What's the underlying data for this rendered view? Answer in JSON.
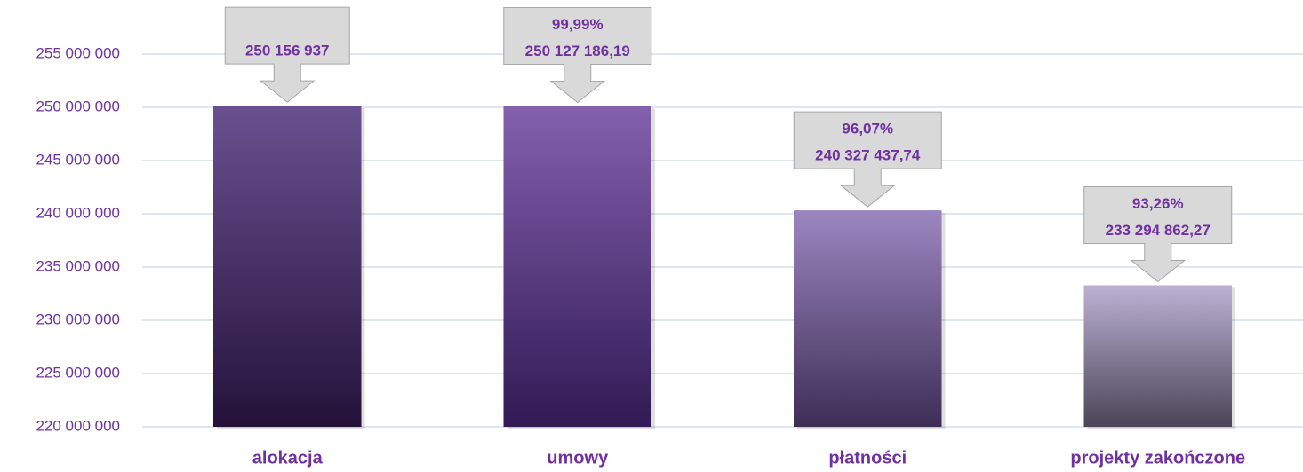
{
  "chart_data": {
    "type": "bar",
    "categories": [
      "alokacja",
      "umowy",
      "płatności",
      "projekty zakończone"
    ],
    "values": [
      250156937,
      250127186.19,
      240327437.74,
      233294862.27
    ],
    "value_labels": [
      "250 156 937",
      "250 127 186,19",
      "240 327 437,74",
      "233 294 862,27"
    ],
    "shares": [
      null,
      99.99,
      96.07,
      93.26
    ],
    "share_labels": [
      null,
      "99,99%",
      "96,07%",
      "93,26%"
    ],
    "colors": [
      "#6a5090",
      "#8460ae",
      "#9c86c0",
      "#bdb1d4"
    ],
    "gradient_colors": [
      "#24123a",
      "#311a55",
      "#3e2e56",
      "#4a4558"
    ],
    "ylim": [
      220000000,
      260000000
    ],
    "yticks": [
      {
        "value": 220000000,
        "label": "220 000 000"
      },
      {
        "value": 225000000,
        "label": "225 000 000"
      },
      {
        "value": 230000000,
        "label": "230 000 000"
      },
      {
        "value": 235000000,
        "label": "235 000 000"
      },
      {
        "value": 240000000,
        "label": "240 000 000"
      },
      {
        "value": 245000000,
        "label": "245 000 000"
      },
      {
        "value": 250000000,
        "label": "250 000 000"
      },
      {
        "value": 255000000,
        "label": "255 000 000"
      }
    ],
    "grid": true
  }
}
